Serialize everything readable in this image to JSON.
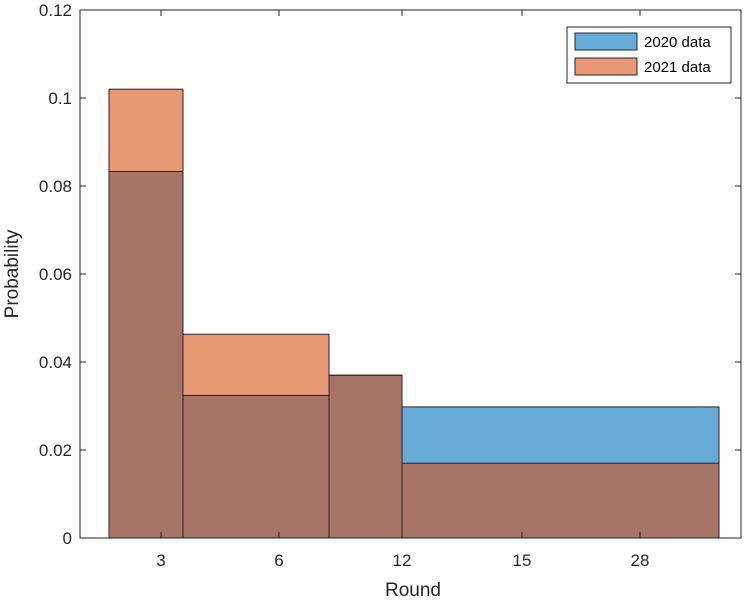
{
  "chart_data": {
    "type": "bar",
    "title": "",
    "xlabel": "Round",
    "ylabel": "Probability",
    "ylim": [
      0,
      0.12
    ],
    "yticks": [
      "0",
      "0.02",
      "0.04",
      "0.06",
      "0.08",
      "0.1",
      "0.12"
    ],
    "yticks_values": [
      0,
      0.02,
      0.04,
      0.06,
      0.08,
      0.1,
      0.12
    ],
    "xticks": [
      "3",
      "6",
      "12",
      "15",
      "28"
    ],
    "bins": [
      {
        "from": "",
        "to": "3"
      },
      {
        "from": "3",
        "to": "6"
      },
      {
        "from": "6",
        "to": "12"
      },
      {
        "from": "12",
        "to": ""
      }
    ],
    "series": [
      {
        "name": "2020 data",
        "color": "#0072BD",
        "values": [
          0.0833,
          0.0324,
          0.037,
          0.0298
        ]
      },
      {
        "name": "2021 data",
        "color": "#D95319",
        "values": [
          0.102,
          0.0463,
          0.037,
          0.017
        ]
      }
    ],
    "overlap_color": "#A67565",
    "bar_opacity": 0.6,
    "legend_position": "top-right",
    "grid": false
  }
}
